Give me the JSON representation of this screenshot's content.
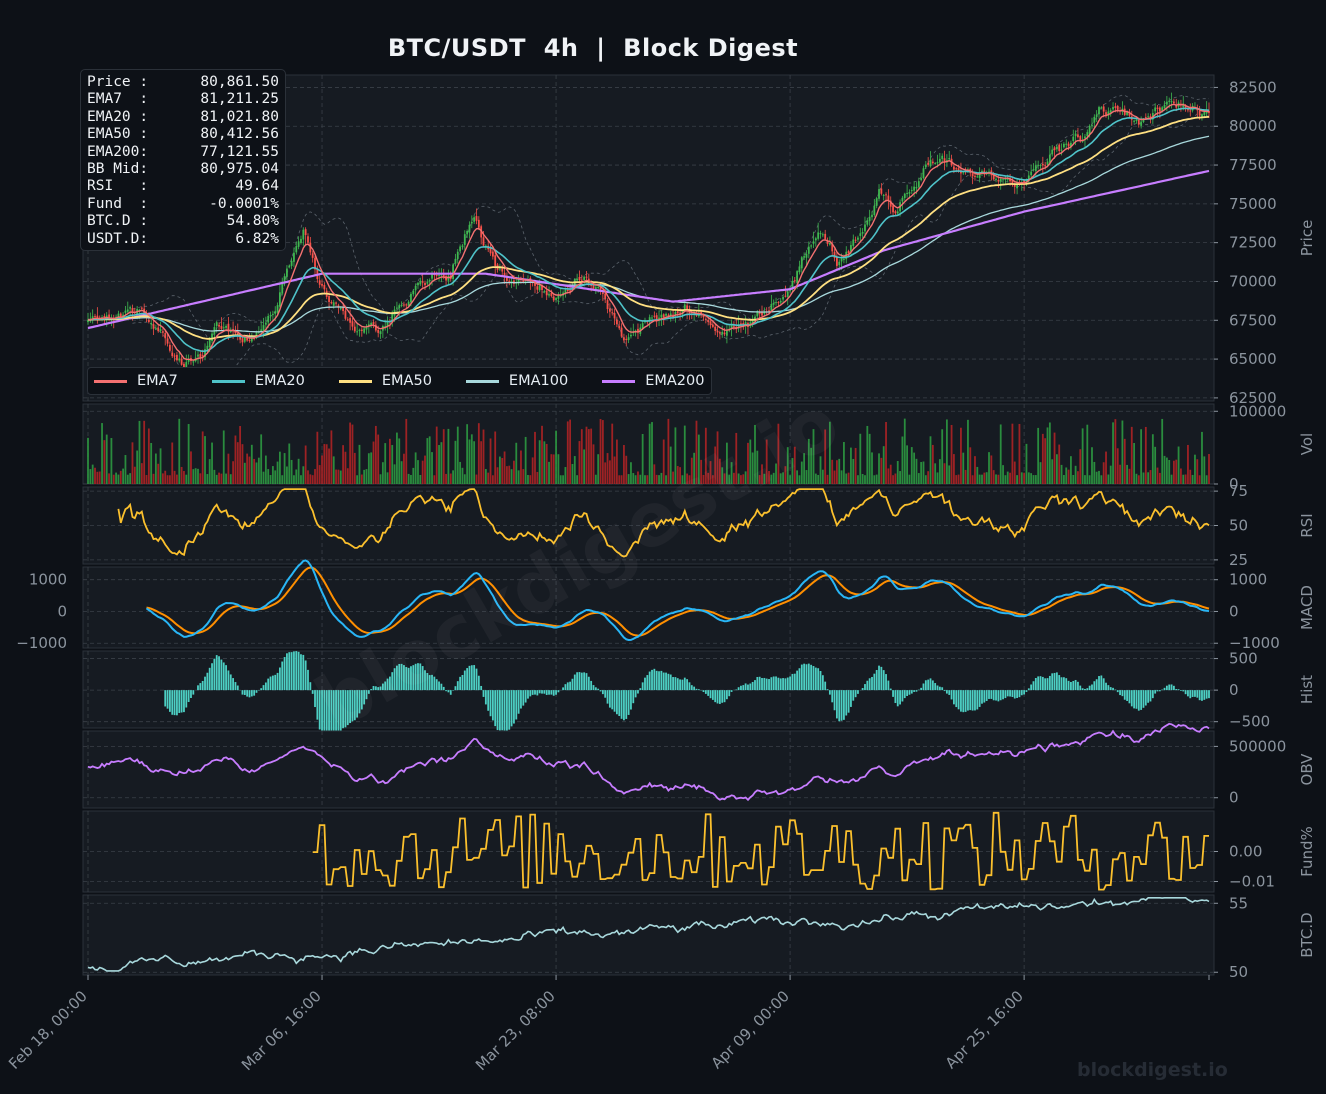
{
  "title": "BTC/USDT  4h  |  Block Digest",
  "watermark": "blockdigest.io",
  "footer_brand": "blockdigest.io",
  "colors": {
    "background": "#0d1117",
    "panel": "#161b22",
    "grid": "#3a4048",
    "candle_up": "#3fb950",
    "candle_down": "#f85149",
    "ema7": "#f47171",
    "ema20": "#4fc3c9",
    "ema50": "#ffe082",
    "ema100": "#a8d8dc",
    "ema200": "#c77dff",
    "rsi": "#fbc02d",
    "macd": "#29b6f6",
    "signal": "#ff8f00",
    "hist": "#4dd0c4",
    "obv": "#c77dff",
    "funding": "#fbc02d",
    "btcd": "#a8d8dc"
  },
  "info_box": [
    {
      "label": "Price :",
      "value": "80,861.50"
    },
    {
      "label": "EMA7  :",
      "value": "81,211.25"
    },
    {
      "label": "EMA20 :",
      "value": "81,021.80"
    },
    {
      "label": "EMA50 :",
      "value": "80,412.56"
    },
    {
      "label": "EMA200:",
      "value": "77,121.55"
    },
    {
      "label": "BB Mid:",
      "value": "80,975.04"
    },
    {
      "label": "RSI   :",
      "value": "49.64"
    },
    {
      "label": "Fund  :",
      "value": "-0.0001%"
    },
    {
      "label": "BTC.D :",
      "value": "54.80%"
    },
    {
      "label": "USDT.D:",
      "value": "6.82%"
    }
  ],
  "legend": [
    {
      "name": "EMA7",
      "color": "#f47171"
    },
    {
      "name": "EMA20",
      "color": "#4fc3c9"
    },
    {
      "name": "EMA50",
      "color": "#ffe082"
    },
    {
      "name": "EMA100",
      "color": "#a8d8dc"
    },
    {
      "name": "EMA200",
      "color": "#c77dff"
    }
  ],
  "chart_data": {
    "type": "line",
    "timeframe": "4h",
    "x_tick_labels": [
      "Feb 18, 00:00",
      "Mar 06, 16:00",
      "Mar 23, 08:00",
      "Apr 09, 00:00",
      "Apr 25, 16:00"
    ],
    "candle_count": 480,
    "price_series": {
      "close_anchors": [
        [
          0,
          67500
        ],
        [
          20,
          68000
        ],
        [
          35,
          66000
        ],
        [
          45,
          64500
        ],
        [
          55,
          67500
        ],
        [
          70,
          66000
        ],
        [
          80,
          68000
        ],
        [
          92,
          73000
        ],
        [
          100,
          69500
        ],
        [
          115,
          67500
        ],
        [
          125,
          67000
        ],
        [
          140,
          70000
        ],
        [
          155,
          71000
        ],
        [
          160,
          72500
        ],
        [
          165,
          74500
        ],
        [
          175,
          71000
        ],
        [
          185,
          70000
        ],
        [
          200,
          68500
        ],
        [
          212,
          70500
        ],
        [
          220,
          69500
        ],
        [
          230,
          66000
        ],
        [
          240,
          67000
        ],
        [
          255,
          68000
        ],
        [
          270,
          67000
        ],
        [
          290,
          68000
        ],
        [
          305,
          71500
        ],
        [
          312,
          73000
        ],
        [
          320,
          71000
        ],
        [
          330,
          73000
        ],
        [
          338,
          75500
        ],
        [
          345,
          74500
        ],
        [
          352,
          76000
        ],
        [
          360,
          78000
        ],
        [
          370,
          77500
        ],
        [
          385,
          77000
        ],
        [
          395,
          76500
        ],
        [
          410,
          77500
        ],
        [
          425,
          79500
        ],
        [
          432,
          81500
        ],
        [
          440,
          80500
        ],
        [
          448,
          80000
        ],
        [
          458,
          81000
        ],
        [
          468,
          81500
        ],
        [
          479,
          80861.5
        ]
      ],
      "ema200_anchors": [
        [
          0,
          67000
        ],
        [
          100,
          70500
        ],
        [
          170,
          70500
        ],
        [
          250,
          68700
        ],
        [
          300,
          69500
        ],
        [
          340,
          72000
        ],
        [
          400,
          74500
        ],
        [
          479,
          77121.55
        ]
      ]
    },
    "panels": [
      {
        "name": "Price",
        "ylabel": "Price",
        "yticks": [
          62500,
          65000,
          67500,
          70000,
          72500,
          75000,
          77500,
          80000,
          82500
        ],
        "ylim": [
          62300,
          83300
        ]
      },
      {
        "name": "Volume",
        "ylabel": "Vol",
        "yticks": [
          0,
          100000
        ],
        "ylim": [
          0,
          110000
        ]
      },
      {
        "name": "RSI",
        "ylabel": "RSI",
        "yticks": [
          25,
          50,
          75
        ],
        "ylim": [
          22,
          78
        ]
      },
      {
        "name": "MACD",
        "ylabel": "MACD",
        "yticks": [
          -1000,
          0,
          1000
        ],
        "ylim": [
          -1150,
          1400
        ],
        "series": [
          "MACD",
          "Signal"
        ]
      },
      {
        "name": "Histogram",
        "ylabel": "Hist",
        "yticks": [
          -500,
          0,
          500
        ],
        "ylim": [
          -600,
          620
        ]
      },
      {
        "name": "OBV",
        "ylabel": "OBV",
        "yticks": [
          0,
          500000
        ],
        "ylim": [
          -100000,
          650000
        ]
      },
      {
        "name": "Funding",
        "ylabel": "Fund%",
        "yticks": [
          -0.01,
          0.0
        ],
        "ylim": [
          -0.0135,
          0.0135
        ],
        "ytick_labels": [
          "−0.01",
          "0.00"
        ]
      },
      {
        "name": "BTC Dominance",
        "ylabel": "BTC.D",
        "yticks": [
          50,
          55
        ],
        "ylim": [
          49.8,
          55.6
        ]
      }
    ],
    "rsi_range": [
      25,
      78
    ],
    "funding_range": [
      -0.013,
      0.013
    ],
    "btcd_range": [
      50.1,
      55.4
    ],
    "obv_range": [
      -20000,
      720000
    ],
    "grid": true,
    "legend_position": "bottom-left of price panel"
  }
}
